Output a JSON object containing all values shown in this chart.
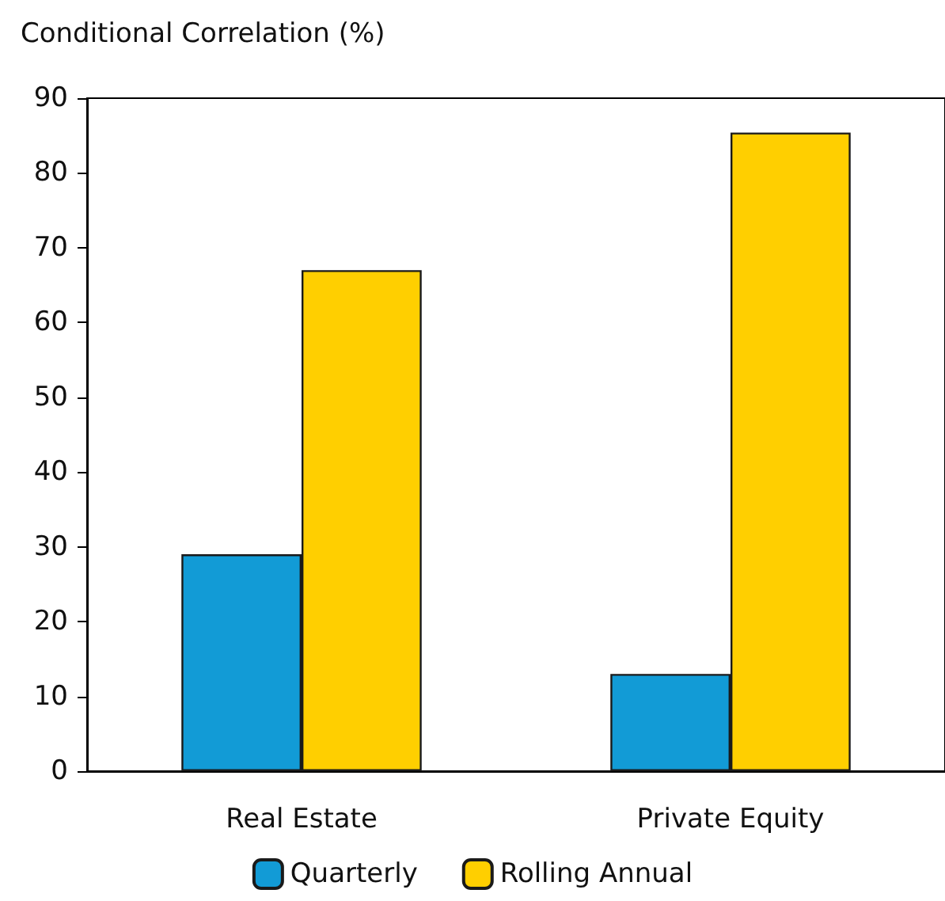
{
  "chart_data": {
    "type": "bar",
    "ylabel": "Conditional Correlation (%)",
    "categories": [
      "Real Estate",
      "Private Equity"
    ],
    "series": [
      {
        "name": "Quarterly",
        "color": "#129bd6",
        "values": [
          29,
          13
        ]
      },
      {
        "name": "Rolling Annual",
        "color": "#ffcf00",
        "values": [
          67,
          85.4
        ]
      }
    ],
    "ylim": [
      0,
      90
    ],
    "yticks": [
      0,
      10,
      20,
      30,
      40,
      50,
      60,
      70,
      80,
      90
    ],
    "grid": false,
    "legend": "bottom"
  }
}
